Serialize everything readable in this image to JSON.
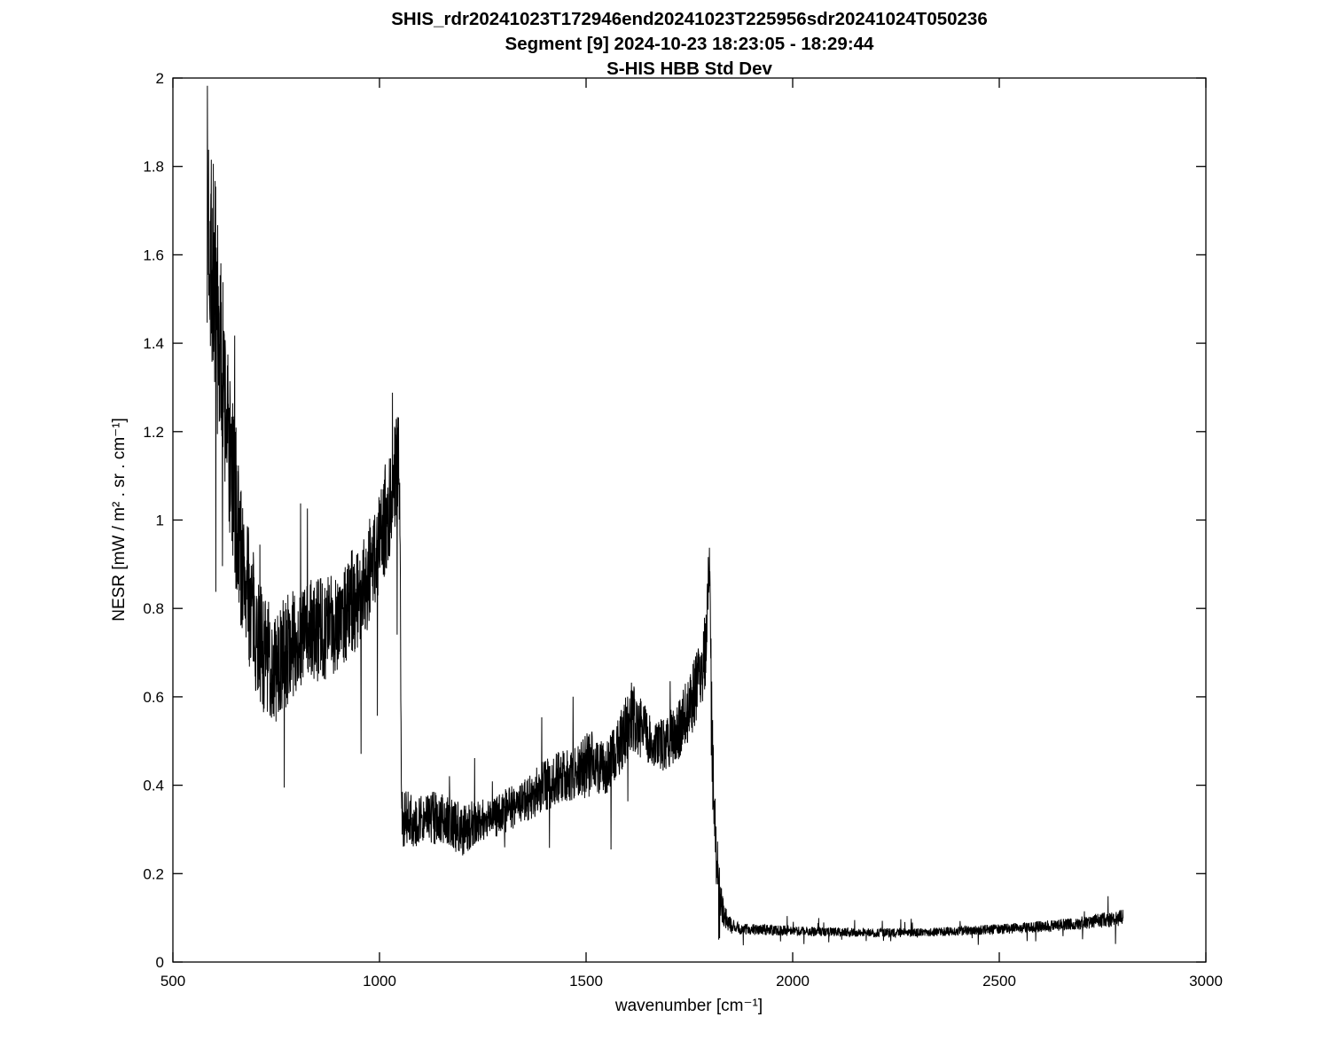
{
  "chart_data": {
    "type": "line",
    "title_lines": [
      "SHIS_rdr20241023T172946end20241023T225956sdr20241024T050236",
      "Segment [9] 2024-10-23 18:23:05 - 18:29:44",
      "S-HIS HBB Std Dev"
    ],
    "xlabel": "wavenumber [cm⁻¹]",
    "ylabel": "NESR [mW / m² . sr . cm⁻¹]",
    "xlim": [
      500,
      3000
    ],
    "ylim": [
      0,
      2
    ],
    "xticks": [
      500,
      1000,
      1500,
      2000,
      2500,
      3000
    ],
    "yticks": [
      0,
      0.2,
      0.4,
      0.6,
      0.8,
      1,
      1.2,
      1.4,
      1.6,
      1.8,
      2
    ],
    "grid": false,
    "line_color": "#000000",
    "axis_color": "#000000",
    "background": "#ffffff",
    "noise_seed": 7,
    "step": 0.55,
    "series": [
      {
        "name": "S-HIS HBB Std Dev",
        "anchors_format": [
          "wavenumber_cm-1",
          "mean_NESR",
          "noise_amplitude"
        ],
        "anchors": [
          [
            583,
            1.72,
            0.28
          ],
          [
            595,
            1.6,
            0.3
          ],
          [
            610,
            1.42,
            0.25
          ],
          [
            625,
            1.28,
            0.22
          ],
          [
            640,
            1.12,
            0.2
          ],
          [
            655,
            1.0,
            0.2
          ],
          [
            670,
            0.88,
            0.16
          ],
          [
            690,
            0.8,
            0.15
          ],
          [
            710,
            0.72,
            0.14
          ],
          [
            730,
            0.68,
            0.14
          ],
          [
            750,
            0.66,
            0.13
          ],
          [
            770,
            0.7,
            0.13
          ],
          [
            790,
            0.72,
            0.12
          ],
          [
            820,
            0.74,
            0.12
          ],
          [
            850,
            0.75,
            0.12
          ],
          [
            880,
            0.76,
            0.12
          ],
          [
            910,
            0.79,
            0.12
          ],
          [
            940,
            0.82,
            0.12
          ],
          [
            970,
            0.87,
            0.12
          ],
          [
            1000,
            0.95,
            0.13
          ],
          [
            1025,
            1.04,
            0.13
          ],
          [
            1045,
            1.12,
            0.13
          ],
          [
            1049,
            1.1,
            0.1
          ],
          [
            1053,
            0.33,
            0.07
          ],
          [
            1080,
            0.32,
            0.06
          ],
          [
            1120,
            0.33,
            0.06
          ],
          [
            1160,
            0.32,
            0.06
          ],
          [
            1200,
            0.3,
            0.06
          ],
          [
            1240,
            0.32,
            0.05
          ],
          [
            1280,
            0.33,
            0.05
          ],
          [
            1320,
            0.35,
            0.05
          ],
          [
            1360,
            0.37,
            0.05
          ],
          [
            1400,
            0.4,
            0.06
          ],
          [
            1440,
            0.42,
            0.06
          ],
          [
            1480,
            0.43,
            0.06
          ],
          [
            1510,
            0.45,
            0.08
          ],
          [
            1525,
            0.44,
            0.06
          ],
          [
            1550,
            0.44,
            0.06
          ],
          [
            1580,
            0.49,
            0.07
          ],
          [
            1610,
            0.56,
            0.08
          ],
          [
            1630,
            0.53,
            0.07
          ],
          [
            1660,
            0.5,
            0.06
          ],
          [
            1690,
            0.49,
            0.06
          ],
          [
            1720,
            0.52,
            0.07
          ],
          [
            1750,
            0.58,
            0.08
          ],
          [
            1775,
            0.64,
            0.08
          ],
          [
            1790,
            0.72,
            0.1
          ],
          [
            1798,
            0.88,
            0.08
          ],
          [
            1800,
            0.9,
            0.05
          ],
          [
            1803,
            0.6,
            0.15
          ],
          [
            1808,
            0.38,
            0.1
          ],
          [
            1815,
            0.25,
            0.07
          ],
          [
            1822,
            0.17,
            0.05
          ],
          [
            1832,
            0.11,
            0.03
          ],
          [
            1845,
            0.085,
            0.02
          ],
          [
            1870,
            0.075,
            0.013
          ],
          [
            1950,
            0.072,
            0.012
          ],
          [
            2050,
            0.069,
            0.011
          ],
          [
            2150,
            0.067,
            0.01
          ],
          [
            2250,
            0.066,
            0.01
          ],
          [
            2350,
            0.068,
            0.01
          ],
          [
            2450,
            0.072,
            0.011
          ],
          [
            2550,
            0.077,
            0.012
          ],
          [
            2650,
            0.084,
            0.014
          ],
          [
            2730,
            0.092,
            0.016
          ],
          [
            2800,
            0.1,
            0.02
          ]
        ]
      }
    ]
  }
}
